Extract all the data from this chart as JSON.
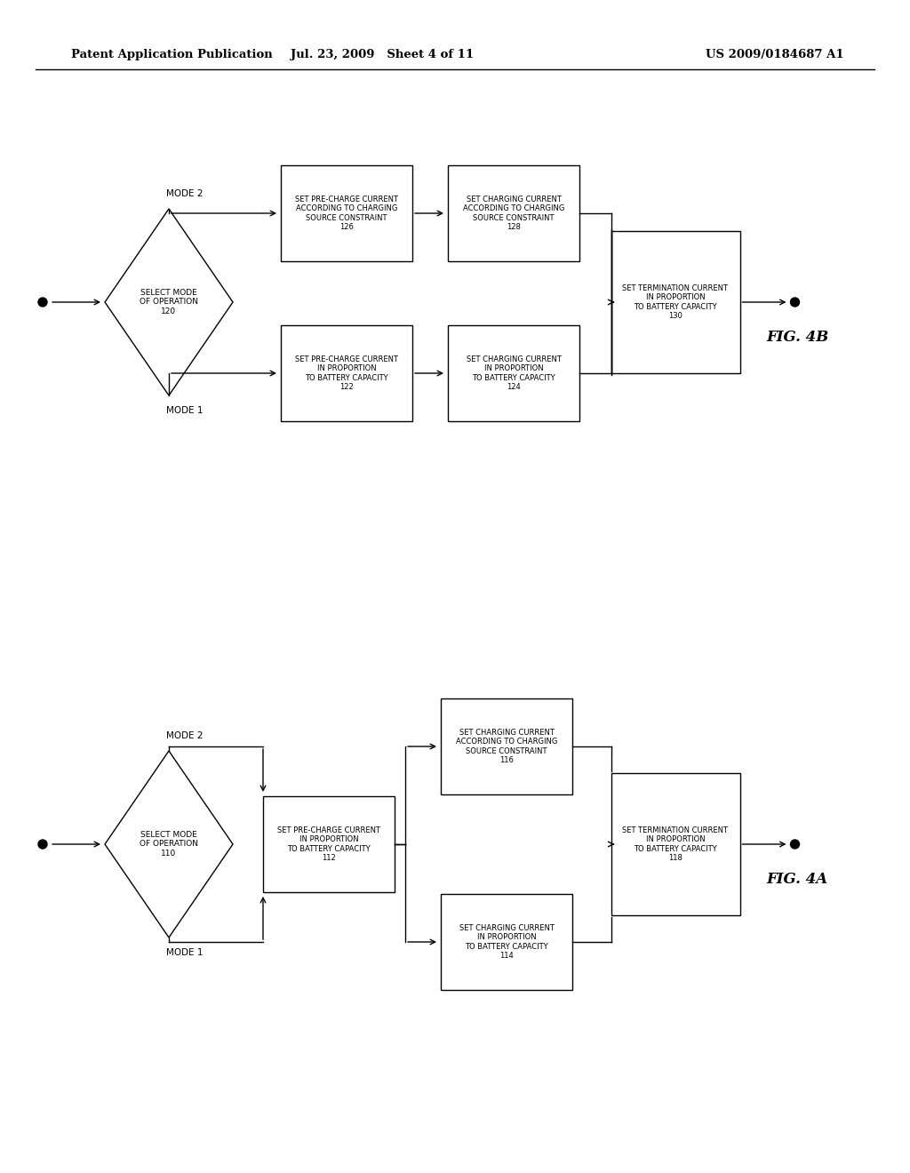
{
  "bg_color": "#ffffff",
  "header": {
    "left": "Patent Application Publication",
    "center": "Jul. 23, 2009   Sheet 4 of 11",
    "right": "US 2009/0184687 A1"
  }
}
